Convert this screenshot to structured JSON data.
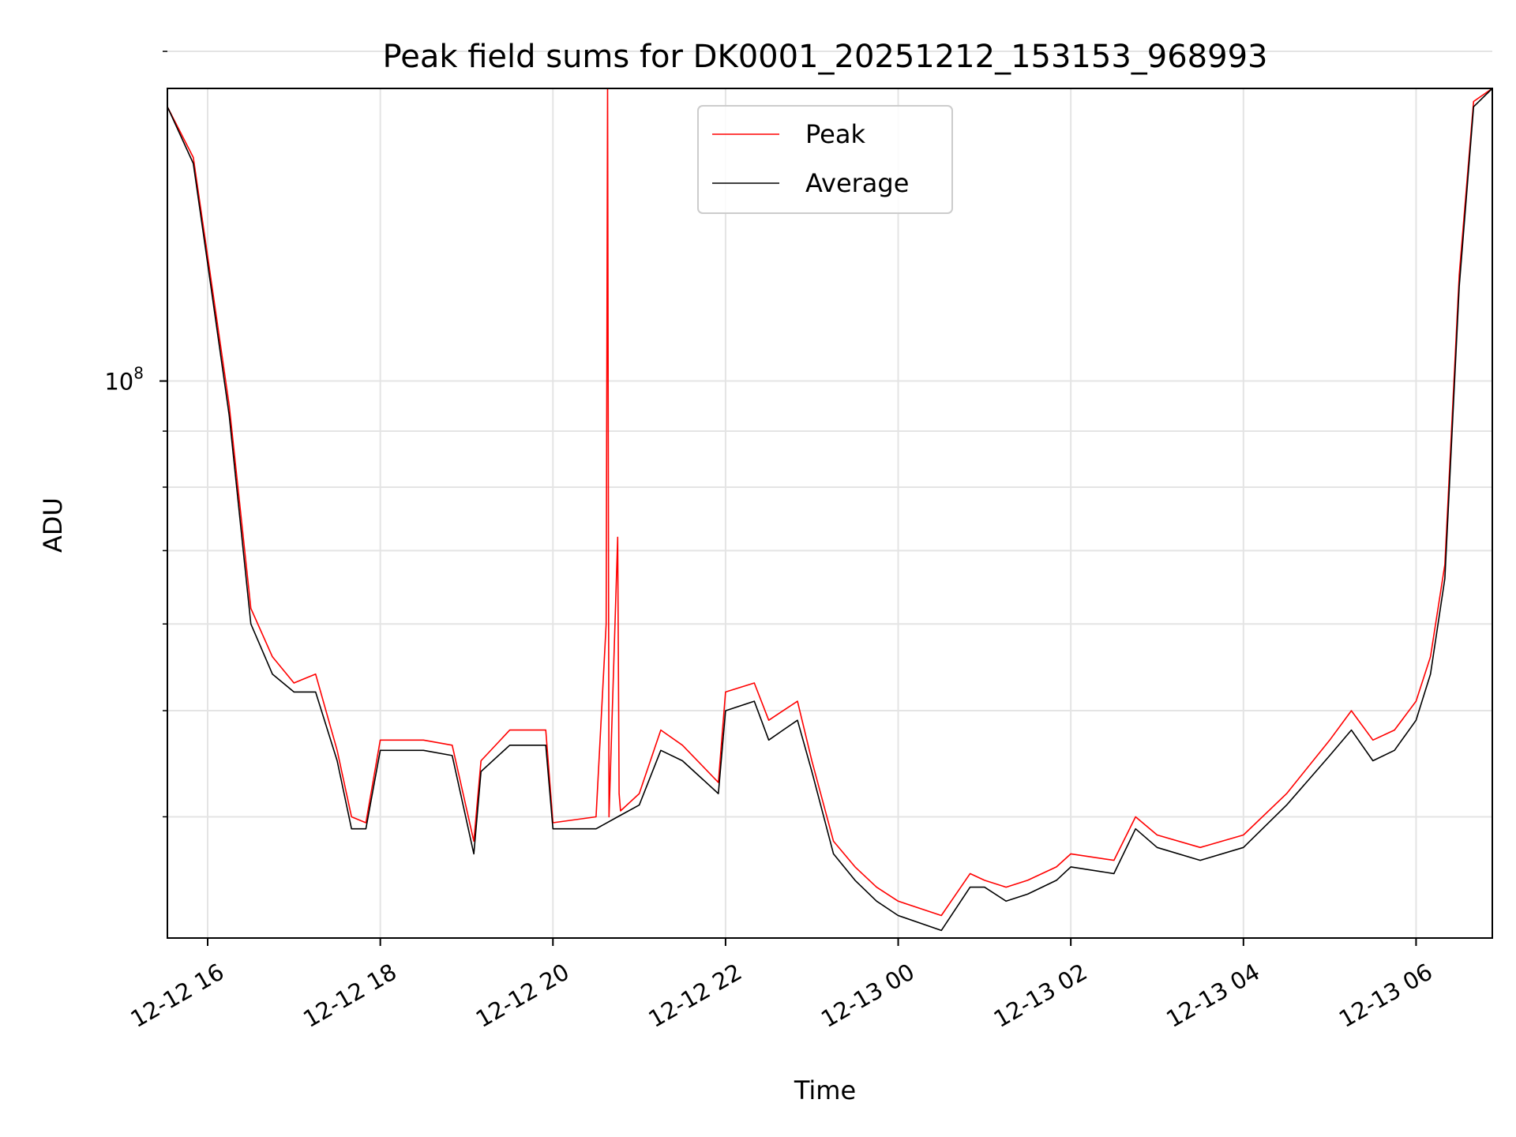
{
  "chart_data": {
    "type": "line",
    "title": "Peak field sums for DK0001_20251212_153153_968993",
    "xlabel": "Time",
    "ylabel": "ADU",
    "yscale": "log",
    "xlim": [
      "2025-12-12 15:32",
      "2025-12-13 06:53"
    ],
    "ylim": [
      31000000,
      185000000
    ],
    "grid": true,
    "legend_position": "top-center",
    "x_tick_labels": [
      "12-12 16",
      "12-12 18",
      "12-12 20",
      "12-12 22",
      "12-13 00",
      "12-13 02",
      "12-13 04",
      "12-13 06"
    ],
    "x_ticks": [
      "2025-12-12 16:00",
      "2025-12-12 18:00",
      "2025-12-12 20:00",
      "2025-12-12 22:00",
      "2025-12-13 00:00",
      "2025-12-13 02:00",
      "2025-12-13 04:00",
      "2025-12-13 06:00"
    ],
    "y_tick_major": {
      "value": 100000000,
      "label_base": "10",
      "label_exp": "8"
    },
    "y_tick_minor": [
      40000000,
      50000000,
      60000000,
      70000000,
      80000000,
      90000000,
      200000000
    ],
    "series": [
      {
        "name": "Peak",
        "color": "#ff0000",
        "x": [
          "2025-12-12 15:32",
          "2025-12-12 15:50",
          "2025-12-12 16:00",
          "2025-12-12 16:15",
          "2025-12-12 16:30",
          "2025-12-12 16:45",
          "2025-12-12 17:00",
          "2025-12-12 17:15",
          "2025-12-12 17:30",
          "2025-12-12 17:40",
          "2025-12-12 17:50",
          "2025-12-12 18:00",
          "2025-12-12 18:30",
          "2025-12-12 18:50",
          "2025-12-12 19:05",
          "2025-12-12 19:10",
          "2025-12-12 19:30",
          "2025-12-12 19:55",
          "2025-12-12 20:00",
          "2025-12-12 20:30",
          "2025-12-12 20:37",
          "2025-12-12 20:38",
          "2025-12-12 20:39",
          "2025-12-12 20:45",
          "2025-12-12 20:46",
          "2025-12-12 20:47",
          "2025-12-12 21:00",
          "2025-12-12 21:15",
          "2025-12-12 21:30",
          "2025-12-12 21:55",
          "2025-12-12 22:00",
          "2025-12-12 22:20",
          "2025-12-12 22:30",
          "2025-12-12 22:40",
          "2025-12-12 22:50",
          "2025-12-12 23:00",
          "2025-12-12 23:15",
          "2025-12-12 23:30",
          "2025-12-12 23:45",
          "2025-12-13 00:00",
          "2025-12-13 00:30",
          "2025-12-13 00:50",
          "2025-12-13 01:00",
          "2025-12-13 01:15",
          "2025-12-13 01:30",
          "2025-12-13 01:50",
          "2025-12-13 02:00",
          "2025-12-13 02:30",
          "2025-12-13 02:45",
          "2025-12-13 03:00",
          "2025-12-13 03:30",
          "2025-12-13 04:00",
          "2025-12-13 04:30",
          "2025-12-13 05:00",
          "2025-12-13 05:15",
          "2025-12-13 05:30",
          "2025-12-13 05:45",
          "2025-12-13 06:00",
          "2025-12-13 06:10",
          "2025-12-13 06:20",
          "2025-12-13 06:30",
          "2025-12-13 06:40",
          "2025-12-13 06:53"
        ],
        "y": [
          178000000,
          160000000,
          130000000,
          95000000,
          62000000,
          56000000,
          53000000,
          54000000,
          46000000,
          40000000,
          39500000,
          47000000,
          47000000,
          46500000,
          38000000,
          45000000,
          48000000,
          48000000,
          39500000,
          40000000,
          60000000,
          185000000,
          40000000,
          72000000,
          42000000,
          40500000,
          42000000,
          48000000,
          46500000,
          43000000,
          52000000,
          53000000,
          49000000,
          50000000,
          51000000,
          45000000,
          38000000,
          36000000,
          34500000,
          33500000,
          32500000,
          35500000,
          35000000,
          34500000,
          35000000,
          36000000,
          37000000,
          36500000,
          40000000,
          38500000,
          37500000,
          38500000,
          42000000,
          47000000,
          50000000,
          47000000,
          48000000,
          51000000,
          56000000,
          68000000,
          125000000,
          180000000,
          185000000
        ]
      },
      {
        "name": "Average",
        "color": "#000000",
        "x": [
          "2025-12-12 15:32",
          "2025-12-12 15:50",
          "2025-12-12 16:00",
          "2025-12-12 16:15",
          "2025-12-12 16:30",
          "2025-12-12 16:45",
          "2025-12-12 17:00",
          "2025-12-12 17:15",
          "2025-12-12 17:30",
          "2025-12-12 17:40",
          "2025-12-12 17:50",
          "2025-12-12 18:00",
          "2025-12-12 18:30",
          "2025-12-12 18:50",
          "2025-12-12 19:05",
          "2025-12-12 19:10",
          "2025-12-12 19:30",
          "2025-12-12 19:55",
          "2025-12-12 20:00",
          "2025-12-12 20:30",
          "2025-12-12 20:45",
          "2025-12-12 21:00",
          "2025-12-12 21:15",
          "2025-12-12 21:30",
          "2025-12-12 21:55",
          "2025-12-12 22:00",
          "2025-12-12 22:20",
          "2025-12-12 22:30",
          "2025-12-12 22:40",
          "2025-12-12 22:50",
          "2025-12-12 23:00",
          "2025-12-12 23:15",
          "2025-12-12 23:30",
          "2025-12-12 23:45",
          "2025-12-13 00:00",
          "2025-12-13 00:30",
          "2025-12-13 00:50",
          "2025-12-13 01:00",
          "2025-12-13 01:15",
          "2025-12-13 01:30",
          "2025-12-13 01:50",
          "2025-12-13 02:00",
          "2025-12-13 02:30",
          "2025-12-13 02:45",
          "2025-12-13 03:00",
          "2025-12-13 03:30",
          "2025-12-13 04:00",
          "2025-12-13 04:30",
          "2025-12-13 05:00",
          "2025-12-13 05:15",
          "2025-12-13 05:30",
          "2025-12-13 05:45",
          "2025-12-13 06:00",
          "2025-12-13 06:10",
          "2025-12-13 06:20",
          "2025-12-13 06:30",
          "2025-12-13 06:40",
          "2025-12-13 06:53"
        ],
        "y": [
          178000000,
          158000000,
          128000000,
          93000000,
          60000000,
          54000000,
          52000000,
          52000000,
          45000000,
          39000000,
          39000000,
          46000000,
          46000000,
          45500000,
          37000000,
          44000000,
          46500000,
          46500000,
          39000000,
          39000000,
          40000000,
          41000000,
          46000000,
          45000000,
          42000000,
          50000000,
          51000000,
          47000000,
          48000000,
          49000000,
          44000000,
          37000000,
          35000000,
          33500000,
          32500000,
          31500000,
          34500000,
          34500000,
          33500000,
          34000000,
          35000000,
          36000000,
          35500000,
          39000000,
          37500000,
          36500000,
          37500000,
          41000000,
          45500000,
          48000000,
          45000000,
          46000000,
          49000000,
          54000000,
          66000000,
          122000000,
          178000000,
          185000000
        ]
      }
    ]
  }
}
